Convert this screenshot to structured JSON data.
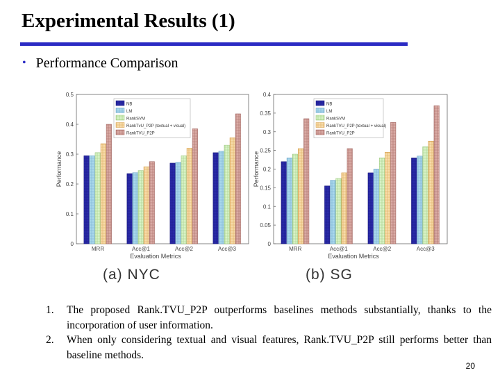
{
  "slide": {
    "title": "Experimental Results (1)",
    "bullet": "Performance Comparison",
    "page_number": "20",
    "accent_color": "#2b2bc4"
  },
  "notes": [
    {
      "num": "1.",
      "text": "The proposed Rank.TVU_P2P outperforms baselines methods substantially, thanks to the incorporation of user information."
    },
    {
      "num": "2.",
      "text": "When only considering textual and visual features, Rank.TVU_P2P still performs better than baseline methods."
    }
  ],
  "chart_data": [
    {
      "type": "bar",
      "caption": "(a) NYC",
      "xlabel": "Evaluation Metrics",
      "ylabel": "Performance",
      "ylim": [
        0,
        0.5
      ],
      "yticks": [
        "0",
        "0.1",
        "0.2",
        "0.3",
        "0.4",
        "0.5"
      ],
      "categories": [
        "MRR",
        "Acc@1",
        "Acc@2",
        "Acc@3"
      ],
      "series": [
        {
          "name": "NB",
          "values": [
            0.295,
            0.235,
            0.27,
            0.305
          ]
        },
        {
          "name": "LM",
          "values": [
            0.295,
            0.238,
            0.273,
            0.31
          ]
        },
        {
          "name": "RankSVM",
          "values": [
            0.305,
            0.245,
            0.295,
            0.33
          ]
        },
        {
          "name": "RankTvU_P2P (textual + visual)",
          "values": [
            0.335,
            0.258,
            0.32,
            0.355
          ]
        },
        {
          "name": "RankTVU_P2P",
          "values": [
            0.4,
            0.275,
            0.385,
            0.435
          ]
        }
      ]
    },
    {
      "type": "bar",
      "caption": "(b) SG",
      "xlabel": "Evaluation Metrics",
      "ylabel": "Performance",
      "ylim": [
        0,
        0.4
      ],
      "yticks": [
        "0",
        "0.05",
        "0.1",
        "0.15",
        "0.2",
        "0.25",
        "0.3",
        "0.35",
        "0.4"
      ],
      "categories": [
        "MRR",
        "Acc@1",
        "Acc@2",
        "Acc@3"
      ],
      "series": [
        {
          "name": "NB",
          "values": [
            0.22,
            0.155,
            0.19,
            0.23
          ]
        },
        {
          "name": "LM",
          "values": [
            0.23,
            0.17,
            0.2,
            0.235
          ]
        },
        {
          "name": "RankSVM",
          "values": [
            0.24,
            0.175,
            0.23,
            0.26
          ]
        },
        {
          "name": "RankTVU_P2P (textual + visual)",
          "values": [
            0.255,
            0.19,
            0.245,
            0.275
          ]
        },
        {
          "name": "RankTVU_P2P",
          "values": [
            0.335,
            0.255,
            0.325,
            0.37
          ]
        }
      ]
    }
  ],
  "series_colors": [
    "#2a2aa8",
    "#a9d8ec",
    "#d8f3c7",
    "#f7dcaa",
    "#d9aaa4"
  ],
  "series_stroke": [
    "#15157a",
    "#6aa2c8",
    "#8fc06f",
    "#d49a44",
    "#9a5a55"
  ]
}
